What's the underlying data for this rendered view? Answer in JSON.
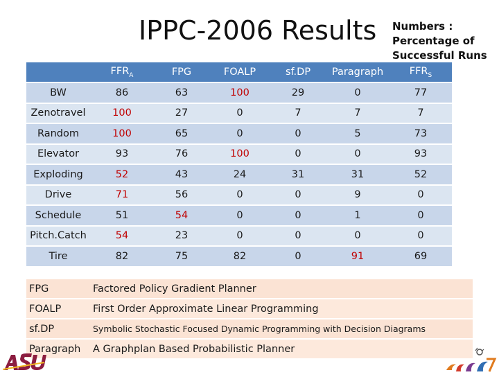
{
  "title": "IPPC-2006 Results",
  "note": [
    "Numbers :",
    "Percentage of",
    "Successful Runs"
  ],
  "columns": {
    "ffra": {
      "base": "FFR",
      "sub": "A"
    },
    "fpg": "FPG",
    "foalp": "FOALP",
    "sfdp": "sf.DP",
    "paragraph": "Paragraph",
    "ffrs": {
      "base": "FFR",
      "sub": "S"
    }
  },
  "rows": [
    {
      "domain": "BW",
      "values": [
        "86",
        "63",
        "100",
        "29",
        "0",
        "77"
      ],
      "highlight": [
        2
      ]
    },
    {
      "domain": "Zenotravel",
      "values": [
        "100",
        "27",
        "0",
        "7",
        "7",
        "7"
      ],
      "highlight": [
        0
      ]
    },
    {
      "domain": "Random",
      "values": [
        "100",
        "65",
        "0",
        "0",
        "5",
        "73"
      ],
      "highlight": [
        0
      ]
    },
    {
      "domain": "Elevator",
      "values": [
        "93",
        "76",
        "100",
        "0",
        "0",
        "93"
      ],
      "highlight": [
        2
      ]
    },
    {
      "domain": "Exploding",
      "values": [
        "52",
        "43",
        "24",
        "31",
        "31",
        "52"
      ],
      "highlight": [
        0
      ]
    },
    {
      "domain": "Drive",
      "values": [
        "71",
        "56",
        "0",
        "0",
        "9",
        "0"
      ],
      "highlight": [
        0
      ]
    },
    {
      "domain": "Schedule",
      "values": [
        "51",
        "54",
        "0",
        "0",
        "1",
        "0"
      ],
      "highlight": [
        1
      ]
    },
    {
      "domain": "Pitch.Catch",
      "values": [
        "54",
        "23",
        "0",
        "0",
        "0",
        "0"
      ],
      "highlight": [
        0
      ]
    },
    {
      "domain": "Tire",
      "values": [
        "82",
        "75",
        "82",
        "0",
        "91",
        "69"
      ],
      "highlight": [
        4
      ]
    }
  ],
  "legend": [
    {
      "abbr": "FPG",
      "full": "Factored Policy Gradient Planner"
    },
    {
      "abbr": "FOALP",
      "full": "First Order Approximate Linear Programming"
    },
    {
      "abbr": "sf.DP",
      "full": "Symbolic Stochastic Focused Dynamic Programming with Decision Diagrams"
    },
    {
      "abbr": "Paragraph",
      "full": "A Graphplan Based Probabilistic Planner"
    }
  ],
  "logos": {
    "asu": "ASU",
    "icaps": "icaps 07"
  },
  "colors": {
    "header": "#4f81bd",
    "row_light": "#dbe5f1",
    "row_dark": "#c8d6ea",
    "legend": "#fbe3d4",
    "highlight": "#c00000"
  }
}
